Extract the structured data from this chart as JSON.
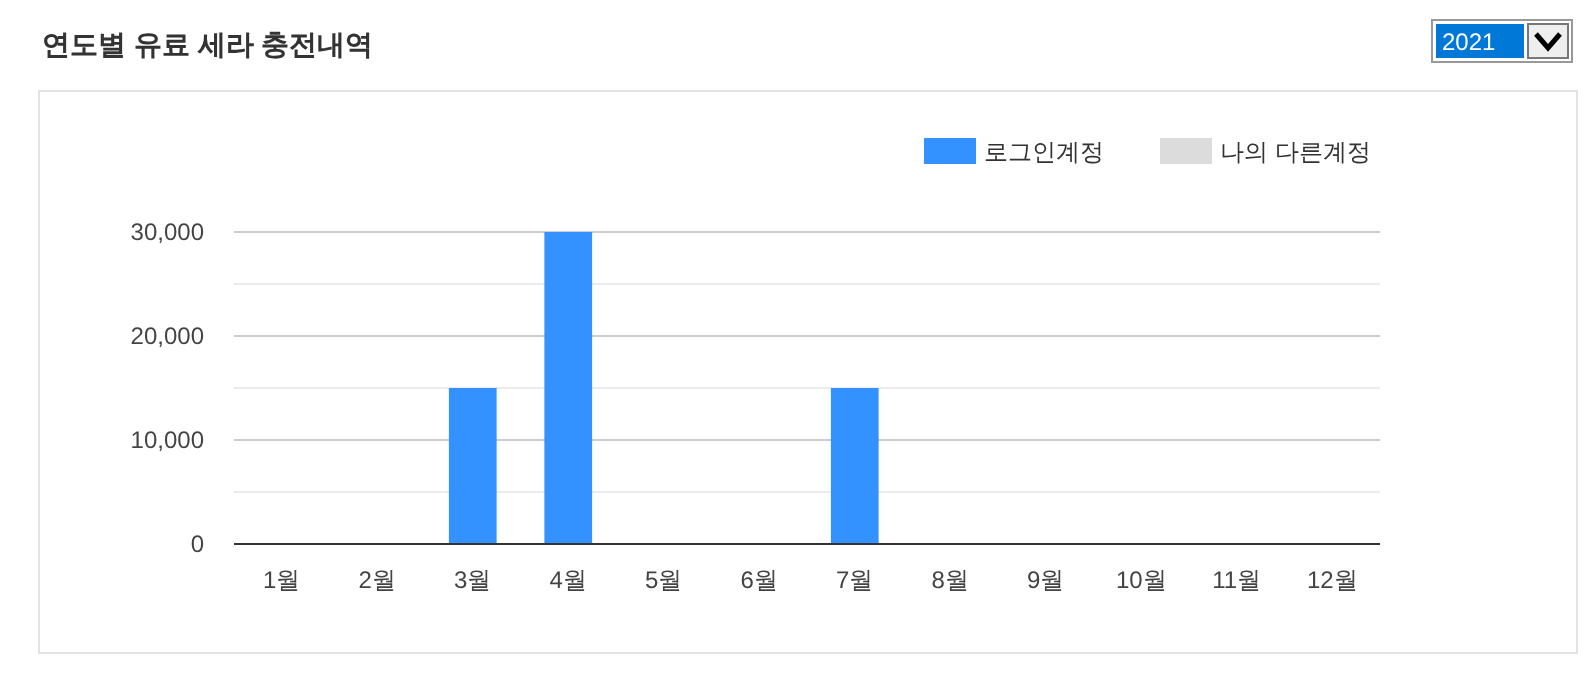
{
  "chart_data": {
    "type": "bar",
    "title": "연도별 유료 세라 충전내역",
    "annotations": [
      "2021"
    ],
    "stacked": true,
    "categories": [
      "1월",
      "2월",
      "3월",
      "4월",
      "5월",
      "6월",
      "7월",
      "8월",
      "9월",
      "10월",
      "11월",
      "12월"
    ],
    "series": [
      {
        "name": "로그인계정",
        "color": "#3392ff",
        "values": [
          0,
          0,
          15000,
          30000,
          0,
          0,
          15000,
          0,
          0,
          0,
          0,
          0
        ]
      },
      {
        "name": "나의 다른계정",
        "color": "#dcdcdc",
        "values": [
          0,
          0,
          0,
          0,
          0,
          0,
          0,
          0,
          0,
          0,
          0,
          0
        ]
      }
    ],
    "ylim": [
      0,
      30000
    ],
    "yticks": [
      0,
      {
        "value": 5000,
        "label": null
      },
      {
        "value": 10000,
        "label": "10,000"
      },
      {
        "value": 15000,
        "label": null
      },
      {
        "value": 20000,
        "label": "20,000"
      },
      {
        "value": 25000,
        "label": null
      },
      {
        "value": 30000,
        "label": "30,000"
      }
    ],
    "grid": "y",
    "legend": "top right"
  }
}
